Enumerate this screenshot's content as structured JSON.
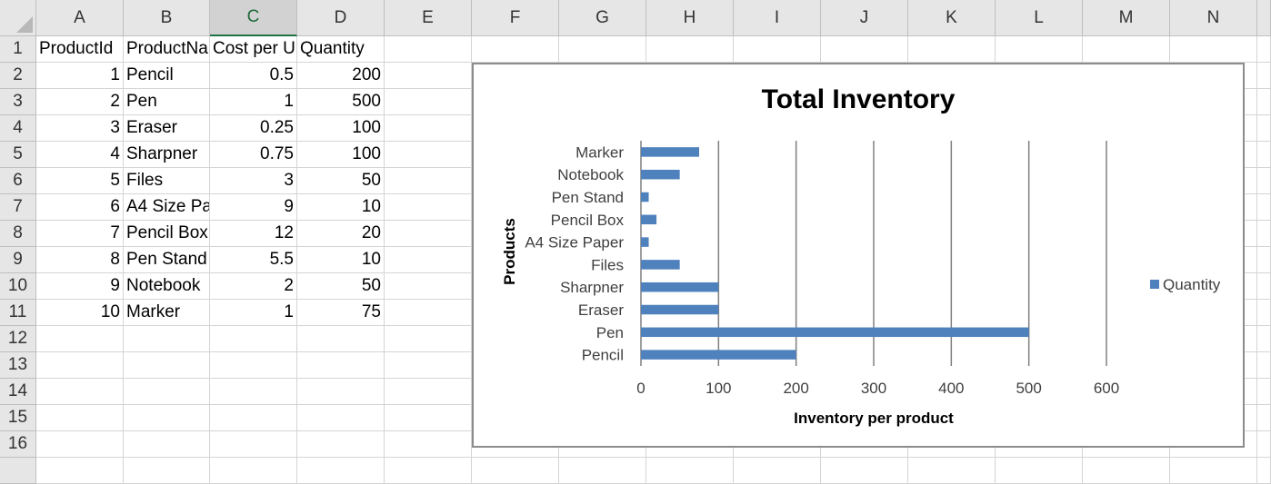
{
  "sheet": {
    "columns": [
      "A",
      "B",
      "C",
      "D",
      "E",
      "F",
      "G",
      "H",
      "I",
      "J",
      "K",
      "L",
      "M",
      "N"
    ],
    "selected_column": "C",
    "rows": [
      "1",
      "2",
      "3",
      "4",
      "5",
      "6",
      "7",
      "8",
      "9",
      "10",
      "11",
      "12",
      "13",
      "14",
      "15",
      "16"
    ],
    "headers": [
      "ProductId",
      "ProductNa",
      "Cost per U",
      "Quantity"
    ],
    "data": [
      [
        "1",
        "Pencil",
        "0.5",
        "200"
      ],
      [
        "2",
        "Pen",
        "1",
        "500"
      ],
      [
        "3",
        "Eraser",
        "0.25",
        "100"
      ],
      [
        "4",
        "Sharpner",
        "0.75",
        "100"
      ],
      [
        "5",
        "Files",
        "3",
        "50"
      ],
      [
        "6",
        "A4 Size Pa",
        "9",
        "10"
      ],
      [
        "7",
        "Pencil Box",
        "12",
        "20"
      ],
      [
        "8",
        "Pen Stand",
        "5.5",
        "10"
      ],
      [
        "9",
        "Notebook",
        "2",
        "50"
      ],
      [
        "10",
        "Marker",
        "1",
        "75"
      ]
    ]
  },
  "chart_data": {
    "type": "bar",
    "orientation": "horizontal",
    "title": "Total Inventory",
    "xlabel": "Inventory per product",
    "ylabel": "Products",
    "categories": [
      "Pencil",
      "Pen",
      "Eraser",
      "Sharpner",
      "Files",
      "A4 Size Paper",
      "Pencil Box",
      "Pen Stand",
      "Notebook",
      "Marker"
    ],
    "series": [
      {
        "name": "Quantity",
        "values": [
          200,
          500,
          100,
          100,
          50,
          10,
          20,
          10,
          50,
          75
        ],
        "color": "#4f81bd"
      }
    ],
    "xlim": [
      0,
      600
    ],
    "xticks": [
      "0",
      "100",
      "200",
      "300",
      "400",
      "500",
      "600"
    ],
    "grid": "vertical",
    "legend": "right",
    "colors": {
      "gridline": "#808080",
      "bar": "#4f81bd"
    }
  }
}
